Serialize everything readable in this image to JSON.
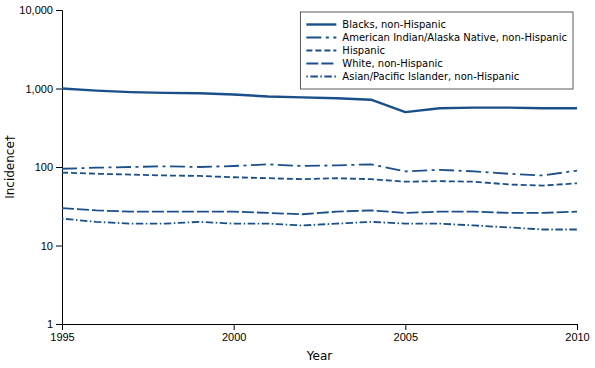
{
  "chart_data": {
    "type": "line",
    "x_label": "Year",
    "y_label": "Incidence†",
    "x": [
      1995,
      1996,
      1997,
      1998,
      1999,
      2000,
      2001,
      2002,
      2003,
      2004,
      2005,
      2006,
      2007,
      2008,
      2009,
      2010
    ],
    "series": [
      {
        "name": "Blacks, non-Hispanic",
        "color": "#1a4f8a",
        "line_style": "solid",
        "values": [
          1000,
          940,
          900,
          880,
          870,
          840,
          790,
          770,
          750,
          720,
          500,
          560,
          570,
          570,
          560,
          560
        ]
      },
      {
        "name": "American Indian/Alaska Native, non-Hispanic",
        "color": "#1a4f8a",
        "line_style": "dashdot",
        "values": [
          95,
          98,
          100,
          102,
          100,
          103,
          108,
          103,
          105,
          108,
          88,
          92,
          88,
          82,
          78,
          90
        ]
      },
      {
        "name": "Hispanic",
        "color": "#1a4f8a",
        "line_style": "dashed",
        "values": [
          85,
          82,
          80,
          78,
          77,
          74,
          72,
          70,
          72,
          70,
          65,
          66,
          65,
          60,
          58,
          62
        ]
      },
      {
        "name": "White, non-Hispanic",
        "color": "#1a4f8a",
        "line_style": "longdash",
        "values": [
          30,
          28,
          27,
          27,
          27,
          27,
          26,
          25,
          27,
          28,
          26,
          27,
          27,
          26,
          26,
          27
        ]
      },
      {
        "name": "Asian/Pacific Islander, non-Hispanic",
        "color": "#1a4f8a",
        "line_style": "dotdash",
        "values": [
          22,
          20,
          19,
          19,
          20,
          19,
          19,
          18,
          19,
          20,
          19,
          19,
          18,
          17,
          16,
          16
        ]
      }
    ],
    "log": "y",
    "xlim": [
      1995,
      2010
    ],
    "xticks": [
      1995,
      2000,
      2005,
      2010
    ],
    "ylim": [
      1,
      10000
    ],
    "yticks": [
      1,
      10,
      100,
      {
        "value": 1000,
        "label": "1,000"
      },
      {
        "value": 10000,
        "label": "10,000"
      }
    ],
    "grid": false,
    "legend": "upper right"
  }
}
